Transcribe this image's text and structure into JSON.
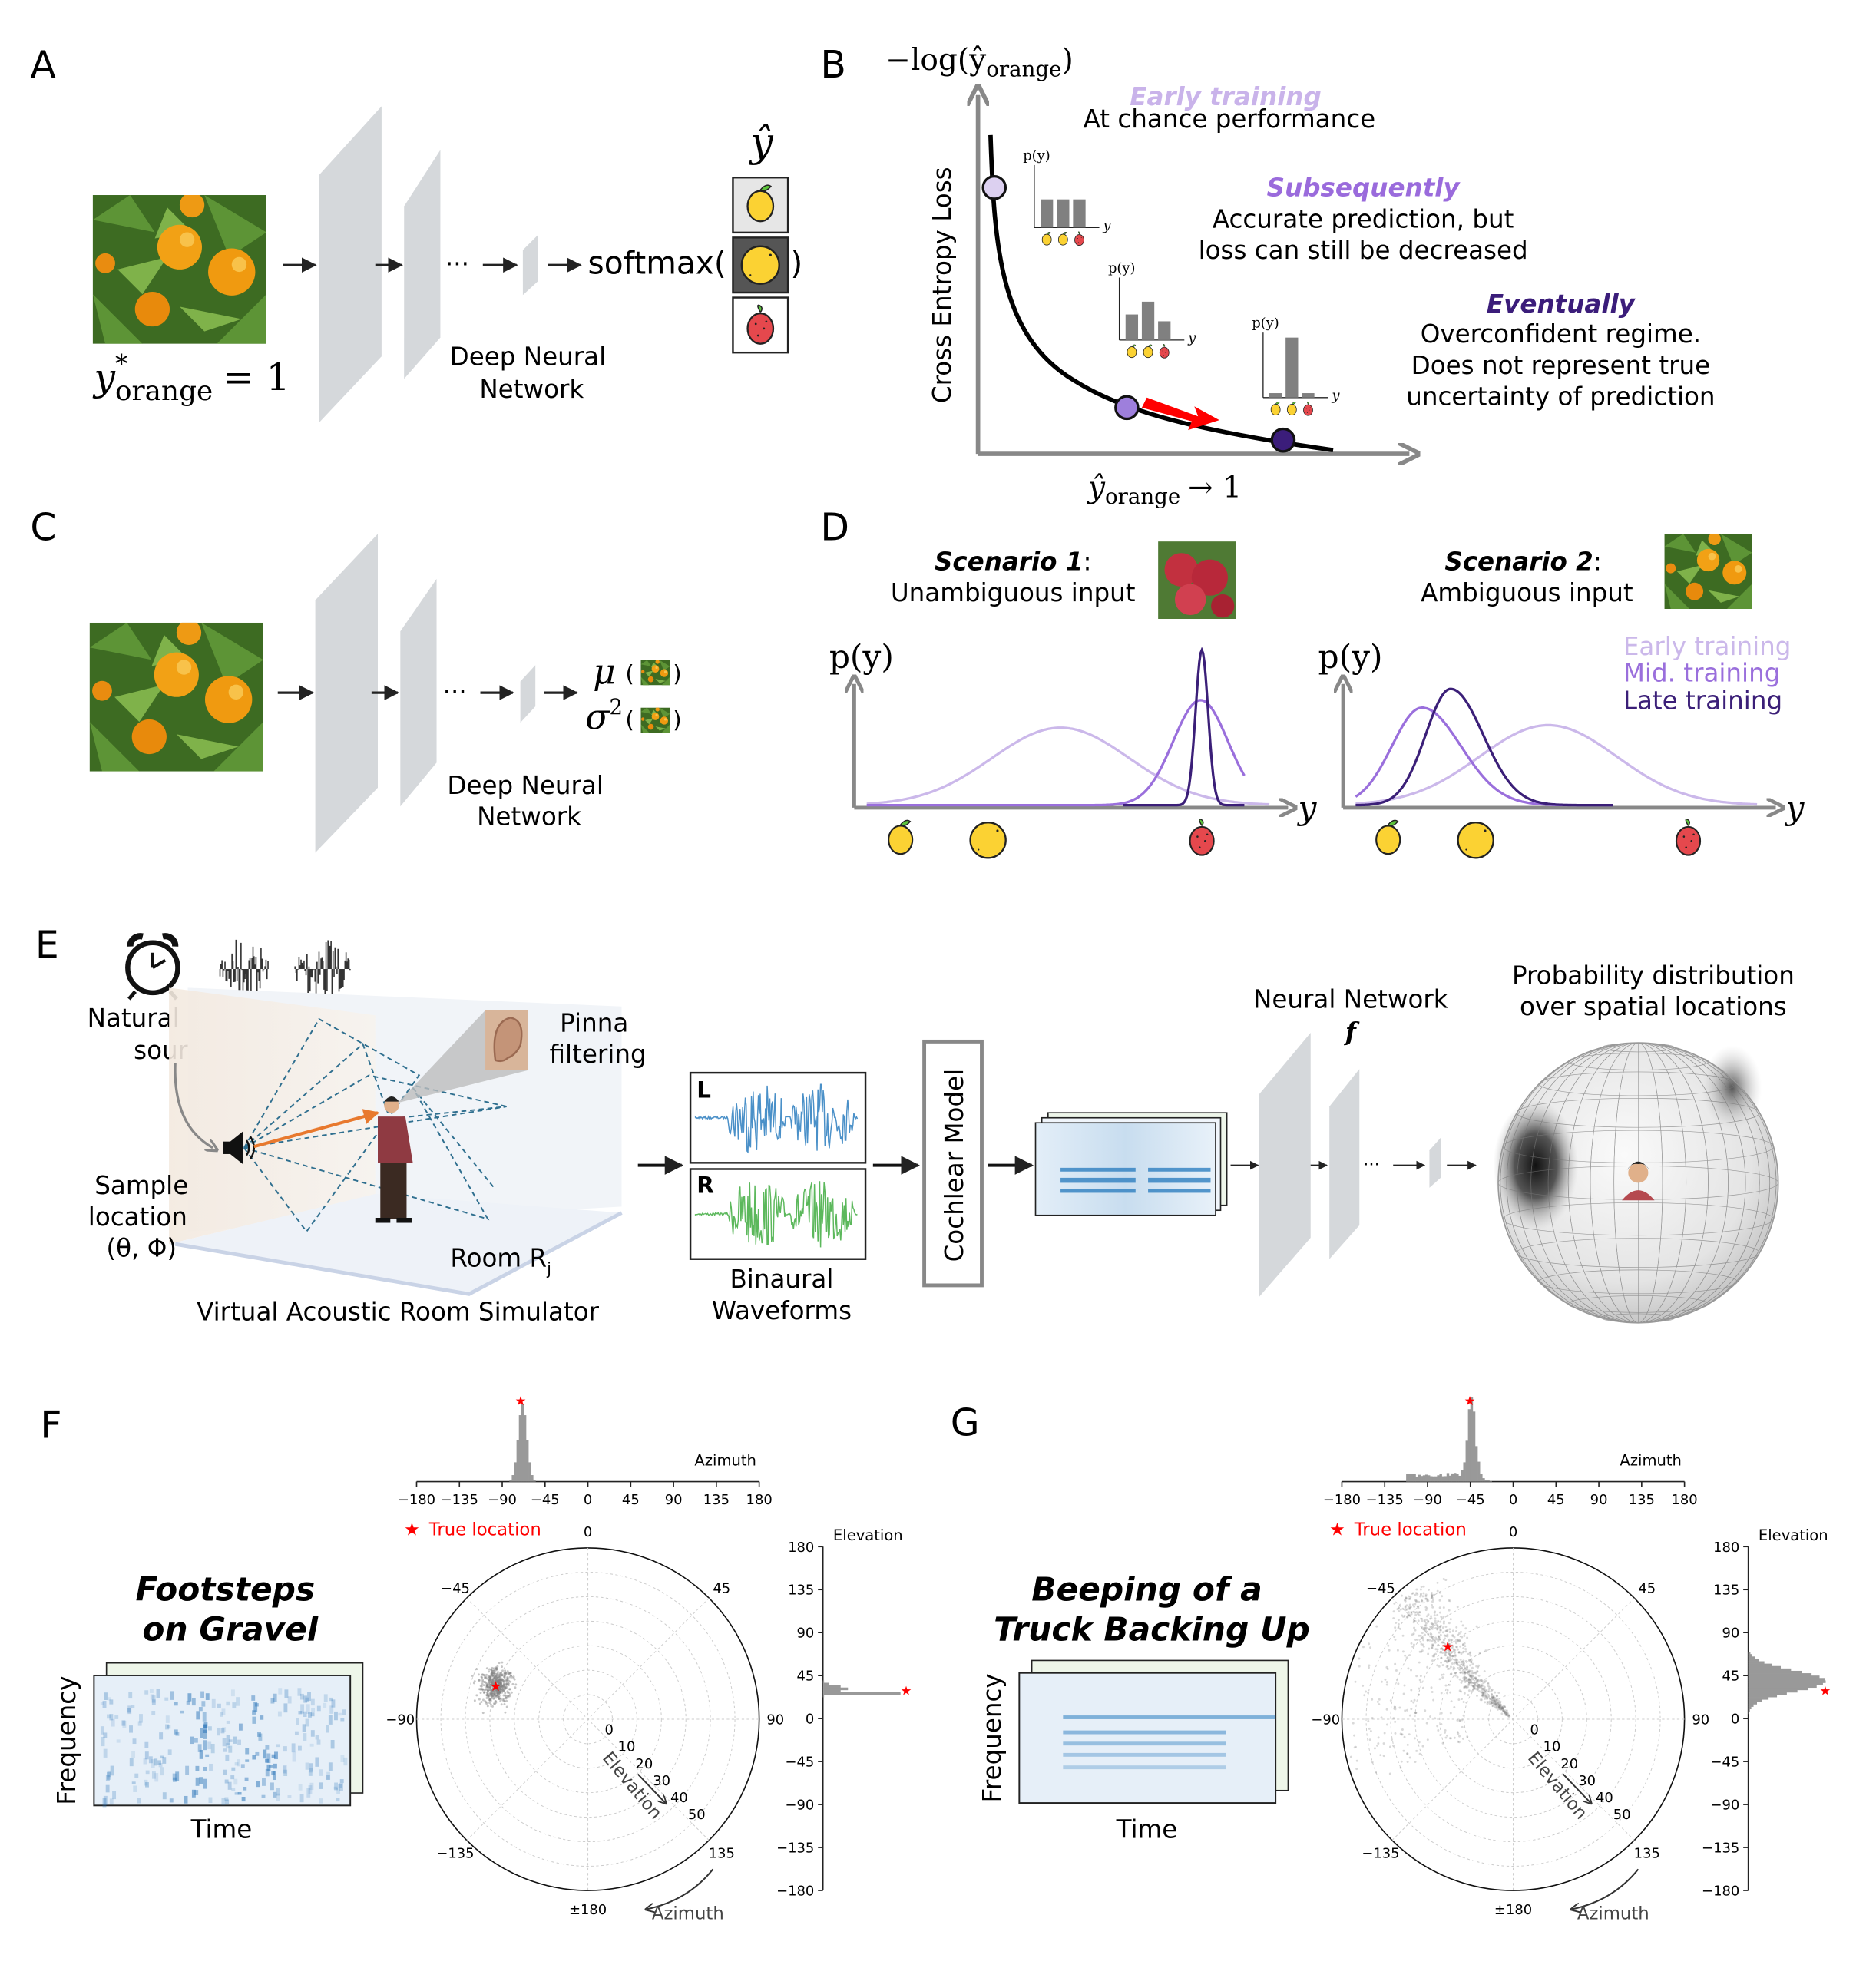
{
  "panel_letters": {
    "a": "A",
    "b": "B",
    "c": "C",
    "d": "D",
    "e": "E",
    "f": "F",
    "g": "G"
  },
  "panel_a": {
    "target_symbol": "y",
    "target_sup": "*",
    "target_sub": "orange",
    "target_eq": "= 1",
    "dots": "···",
    "network_line1": "Deep Neural",
    "network_line2": "Network",
    "softmax_open": "softmax(",
    "softmax_close": ")",
    "output_symbol": "ŷ"
  },
  "panel_b": {
    "y_axis_math": "−log(ŷ",
    "y_axis_sub": "orange",
    "y_axis_close": ")",
    "y_axis_label": "Cross Entropy Loss",
    "x_axis_math": "ŷ",
    "x_axis_sub": "orange",
    "x_axis_tail": "→ 1",
    "stages": [
      {
        "title": "Early training",
        "line1": "At chance performance",
        "line2": "",
        "line3": "",
        "color": "#c9b3ea"
      },
      {
        "title": "Subsequently",
        "line1": "Accurate prediction, but",
        "line2": "loss can still be decreased",
        "line3": "",
        "color": "#9a6bdc"
      },
      {
        "title": "Eventually",
        "line1": "Overconfident regime.",
        "line2": "Does not represent true",
        "line3": "uncertainty of prediction",
        "color": "#3b1d7a"
      }
    ],
    "mini_chart_ylabel": "p(y)",
    "mini_chart_xlabel": "y",
    "mini_charts": [
      {
        "probabilities": [
          0.33,
          0.33,
          0.33
        ]
      },
      {
        "probabilities": [
          0.3,
          0.45,
          0.22
        ]
      },
      {
        "probabilities": [
          0.05,
          0.9,
          0.05
        ]
      }
    ]
  },
  "panel_c": {
    "dots": "···",
    "network_line1": "Deep Neural",
    "network_line2": "Network",
    "mu": "μ",
    "sigma": "σ",
    "sigma_sup": "2",
    "open": "(",
    "close": ")"
  },
  "panel_d": {
    "scenario1_title": "Scenario 1",
    "scenario1_colon": ":",
    "scenario1_sub": "Unambiguous input",
    "scenario2_title": "Scenario 2",
    "scenario2_colon": ":",
    "scenario2_sub": "Ambiguous input",
    "y_label": "p(y)",
    "x_label": "y",
    "legend": [
      {
        "label": "Early training",
        "color": "#cbb8ea"
      },
      {
        "label": "Mid. training",
        "color": "#9a6fdc"
      },
      {
        "label": "Late training",
        "color": "#3b1f78"
      }
    ]
  },
  "panel_e": {
    "source_line1": "Natural sound",
    "source_line2": "source",
    "pinna_line1": "Pinna",
    "pinna_line2": "filtering",
    "sample_line1": "Sample",
    "sample_line2": "location",
    "sample_line3": "(θ, Φ)",
    "room_label": "Room R",
    "room_sub": "j",
    "simulator_label": "Virtual Acoustic Room Simulator",
    "left_channel": "L",
    "right_channel": "R",
    "waveforms_line1": "Binaural",
    "waveforms_line2": "Waveforms",
    "cochlear_label": "Cochlear Model",
    "network_label": "Neural Network",
    "network_symbol": "f",
    "dots": "···",
    "output_line1": "Probability distribution",
    "output_line2": "over spatial locations"
  },
  "plots": [
    {
      "title_line1": "Footsteps",
      "title_line2": "on Gravel",
      "freq_label": "Frequency",
      "time_label": "Time",
      "azimuth_label": "Azimuth",
      "elevation_label": "Elevation",
      "legend_label": "True location",
      "true_location": {
        "azimuth": -70,
        "elevation": 30
      },
      "azimuth_hist_peak": -70,
      "elevation_hist_peak": 30
    },
    {
      "title_line1": "Beeping of a",
      "title_line2": "Truck Backing Up",
      "freq_label": "Frequency",
      "time_label": "Time",
      "azimuth_label": "Azimuth",
      "elevation_label": "Elevation",
      "legend_label": "True location",
      "true_location": {
        "azimuth": -42,
        "elevation": 30
      },
      "azimuth_hist_peak": -45,
      "elevation_hist_peak": 38
    }
  ],
  "hist_ticks": [
    "−180",
    "−135",
    "−90",
    "−45",
    "0",
    "45",
    "90",
    "135",
    "180"
  ],
  "elev_hist_ticks": [
    "180",
    "135",
    "90",
    "45",
    "0",
    "−45",
    "−90",
    "−135",
    "−180"
  ],
  "polar_angle_labels": [
    "0",
    "45",
    "90",
    "135",
    "±180",
    "−135",
    "−90",
    "−45"
  ],
  "polar_elev_labels": [
    "0",
    "10",
    "20",
    "30",
    "40",
    "50"
  ],
  "colors": {
    "true_location": "#ff0000",
    "histogram": "#999999",
    "scatter": "#808080",
    "axis_gray": "#808080",
    "arrow_red": "#ff0000",
    "arrow_orange": "#e8792e"
  }
}
